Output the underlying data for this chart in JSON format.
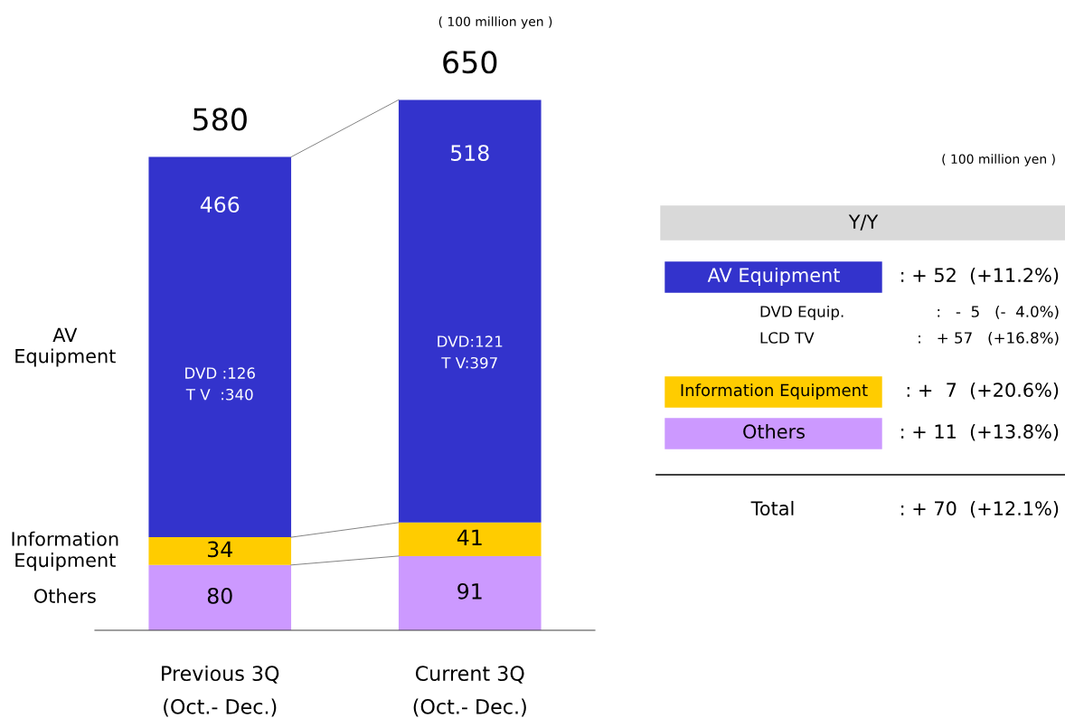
{
  "chart_data": [
    {
      "type": "bar",
      "stacked": true,
      "data_labels": true,
      "categories": [
        "Previous 3Q\n(Oct.- Dec.)",
        "Current 3Q\n(Oct.- Dec.)"
      ],
      "series": [
        {
          "name": "Others",
          "color": "#cc99ff",
          "values": [
            80,
            91
          ]
        },
        {
          "name": "Information\nEquipment",
          "color": "#ffcc00",
          "values": [
            34,
            41
          ]
        },
        {
          "name": "AV\nEquipment",
          "color": "#3333cc",
          "values": [
            466,
            518
          ]
        }
      ],
      "totals": [
        "580",
        "650"
      ],
      "annotations": [
        "DVD :126\nT V  :340",
        "DVD:121\nT V:397",
        "( 100 million yen )"
      ]
    },
    {
      "type": "other",
      "title": "Y/Y",
      "annotations": [
        "( 100 million yen )",
        "AV Equipment",
        ": + 52  (+11.2%)",
        "DVD Equip.",
        ":   -  5   (-  4.0%)",
        "LCD TV",
        ":   + 57   (+16.8%)",
        "Information Equipment",
        ": +  7  (+20.6%)",
        "Others",
        ": + 11  (+13.8%)",
        "Total",
        ": + 70  (+12.1%)"
      ]
    }
  ]
}
